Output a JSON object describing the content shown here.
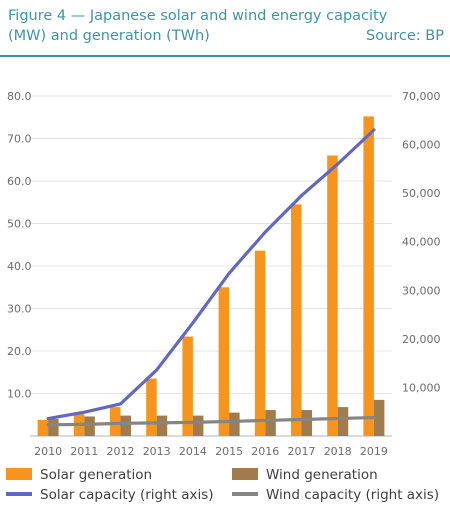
{
  "title_line1": "Figure 4 — Japanese solar and wind energy capacity",
  "title_line2": "(MW) and generation (TWh)",
  "source": "Source: BP",
  "chart_data": {
    "type": "bar",
    "categories": [
      "2010",
      "2011",
      "2012",
      "2013",
      "2014",
      "2015",
      "2016",
      "2017",
      "2018",
      "2019"
    ],
    "series": [
      {
        "name": "Solar generation",
        "kind": "bar",
        "axis": "left",
        "color": "#f7941d",
        "values": [
          3.8,
          5.2,
          6.8,
          13.5,
          23.4,
          35.0,
          43.6,
          54.5,
          66.0,
          75.2
        ]
      },
      {
        "name": "Wind generation",
        "kind": "bar",
        "axis": "left",
        "color": "#a07b4d",
        "values": [
          4.0,
          4.6,
          4.8,
          4.8,
          4.8,
          5.5,
          6.1,
          6.1,
          6.8,
          8.5
        ]
      },
      {
        "name": "Solar capacity (right axis)",
        "kind": "line",
        "axis": "right",
        "color": "#6267c5",
        "values": [
          3600,
          4900,
          6600,
          13600,
          23300,
          33500,
          42000,
          49500,
          56000,
          63000
        ]
      },
      {
        "name": "Wind capacity (right axis)",
        "kind": "line",
        "axis": "right",
        "color": "#858585",
        "values": [
          2300,
          2400,
          2600,
          2700,
          2800,
          3000,
          3200,
          3400,
          3600,
          3800
        ]
      }
    ],
    "y_left": {
      "min": 0,
      "max": 80,
      "ticks": [
        "",
        "10.0",
        "20.0",
        "30.0",
        "40.0",
        "50.0",
        "60.0",
        "70.0",
        "80.0"
      ]
    },
    "y_right": {
      "min": 0,
      "max": 70000,
      "ticks": [
        "",
        "10,000",
        "20,000",
        "30,000",
        "40,000",
        "50,000",
        "60,000",
        "70,000"
      ]
    },
    "grid": true,
    "legend_position": "bottom"
  }
}
